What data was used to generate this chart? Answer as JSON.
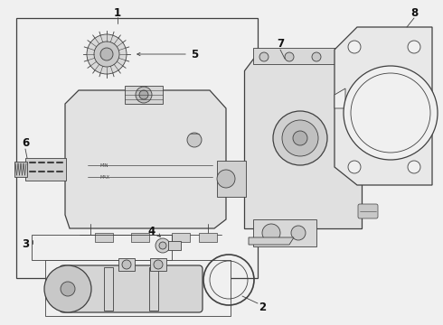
{
  "bg_color": "#f0f0f0",
  "line_color": "#404040",
  "label_color": "#111111",
  "fig_w": 4.9,
  "fig_h": 3.6,
  "dpi": 100
}
